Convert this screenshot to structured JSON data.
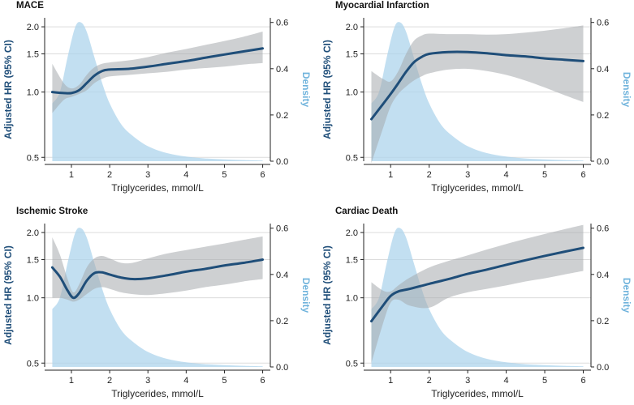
{
  "chart_data": [
    {
      "type": "line",
      "title": "MACE",
      "xlabel": "Triglycerides, mmol/L",
      "ylabel": "Adjusted HR (95% CI)",
      "y2label": "Density",
      "x_ticks": [
        1,
        2,
        3,
        4,
        5,
        6
      ],
      "y_ticks": [
        0.5,
        1.0,
        1.5,
        2.0
      ],
      "y_tick_labels": [
        "0.5",
        "1.0",
        "1.5",
        "2.0"
      ],
      "y2_ticks": [
        0.0,
        0.2,
        0.4,
        0.6
      ],
      "y2_tick_labels": [
        "0.0",
        "0.2",
        "0.4",
        "0.6"
      ],
      "xlim": [
        0.3,
        6.2
      ],
      "ylim": [
        0.48,
        2.2
      ],
      "y_scale": "log",
      "y2lim": [
        0,
        0.62
      ],
      "hr_curve": {
        "x": [
          0.5,
          0.8,
          1.0,
          1.2,
          1.4,
          1.6,
          1.8,
          2.0,
          2.5,
          3.0,
          3.5,
          4.0,
          4.5,
          5.0,
          5.5,
          6.0
        ],
        "y": [
          1.0,
          0.99,
          0.99,
          1.02,
          1.1,
          1.19,
          1.25,
          1.27,
          1.28,
          1.31,
          1.35,
          1.39,
          1.44,
          1.49,
          1.54,
          1.59
        ]
      },
      "ci_upper": {
        "x": [
          0.5,
          0.8,
          1.0,
          1.2,
          1.4,
          1.6,
          1.8,
          2.0,
          2.5,
          3.0,
          3.5,
          4.0,
          4.5,
          5.0,
          5.5,
          6.0
        ],
        "y": [
          1.35,
          1.1,
          1.04,
          1.08,
          1.2,
          1.3,
          1.35,
          1.37,
          1.4,
          1.45,
          1.52,
          1.58,
          1.65,
          1.72,
          1.8,
          1.9
        ]
      },
      "ci_lower": {
        "x": [
          0.5,
          0.8,
          1.0,
          1.2,
          1.4,
          1.6,
          1.8,
          2.0,
          2.5,
          3.0,
          3.5,
          4.0,
          4.5,
          5.0,
          5.5,
          6.0
        ],
        "y": [
          0.8,
          0.92,
          0.95,
          0.98,
          1.02,
          1.1,
          1.15,
          1.18,
          1.2,
          1.22,
          1.24,
          1.27,
          1.29,
          1.31,
          1.34,
          1.36
        ]
      },
      "density": {
        "x": [
          0.5,
          0.7,
          0.9,
          1.1,
          1.25,
          1.4,
          1.6,
          1.8,
          2.0,
          2.3,
          2.6,
          3.0,
          3.5,
          4.0,
          4.5,
          5.0,
          5.5,
          6.0
        ],
        "y": [
          0.25,
          0.3,
          0.45,
          0.58,
          0.6,
          0.56,
          0.45,
          0.34,
          0.25,
          0.16,
          0.11,
          0.065,
          0.035,
          0.02,
          0.012,
          0.008,
          0.005,
          0.003
        ]
      }
    },
    {
      "type": "line",
      "title": "Myocardial Infarction",
      "xlabel": "Triglycerides, mmol/L",
      "ylabel": "Adjusted HR (95% CI)",
      "y2label": "Density",
      "x_ticks": [
        1,
        2,
        3,
        4,
        5,
        6
      ],
      "y_ticks": [
        0.5,
        1.0,
        1.5,
        2.0
      ],
      "y_tick_labels": [
        "0.5",
        "1.0",
        "1.5",
        "2.0"
      ],
      "y2_ticks": [
        0.0,
        0.2,
        0.4,
        0.6
      ],
      "y2_tick_labels": [
        "0.0",
        "0.2",
        "0.4",
        "0.6"
      ],
      "xlim": [
        0.3,
        6.2
      ],
      "ylim": [
        0.48,
        2.2
      ],
      "y_scale": "log",
      "y2lim": [
        0,
        0.62
      ],
      "hr_curve": {
        "x": [
          0.5,
          0.8,
          1.0,
          1.2,
          1.4,
          1.6,
          1.8,
          2.0,
          2.5,
          3.0,
          3.5,
          4.0,
          4.5,
          5.0,
          5.5,
          6.0
        ],
        "y": [
          0.75,
          0.88,
          0.98,
          1.1,
          1.24,
          1.37,
          1.45,
          1.5,
          1.53,
          1.53,
          1.51,
          1.48,
          1.46,
          1.43,
          1.41,
          1.39
        ]
      },
      "ci_upper": {
        "x": [
          0.5,
          0.8,
          1.0,
          1.2,
          1.4,
          1.6,
          1.8,
          2.0,
          2.5,
          3.0,
          3.5,
          4.0,
          4.5,
          5.0,
          5.5,
          6.0
        ],
        "y": [
          1.25,
          1.15,
          1.12,
          1.25,
          1.5,
          1.72,
          1.82,
          1.86,
          1.85,
          1.85,
          1.84,
          1.85,
          1.88,
          1.92,
          1.97,
          2.03
        ]
      },
      "ci_lower": {
        "x": [
          0.5,
          0.8,
          1.0,
          1.2,
          1.4,
          1.6,
          1.8,
          2.0,
          2.5,
          3.0,
          3.5,
          4.0,
          4.5,
          5.0,
          5.5,
          6.0
        ],
        "y": [
          0.47,
          0.68,
          0.86,
          0.98,
          1.06,
          1.13,
          1.18,
          1.22,
          1.27,
          1.28,
          1.25,
          1.2,
          1.13,
          1.05,
          0.97,
          0.9
        ]
      },
      "density": {
        "x": [
          0.5,
          0.7,
          0.9,
          1.1,
          1.25,
          1.4,
          1.6,
          1.8,
          2.0,
          2.3,
          2.6,
          3.0,
          3.5,
          4.0,
          4.5,
          5.0,
          5.5,
          6.0
        ],
        "y": [
          0.25,
          0.3,
          0.45,
          0.58,
          0.6,
          0.56,
          0.45,
          0.34,
          0.25,
          0.16,
          0.11,
          0.065,
          0.035,
          0.02,
          0.012,
          0.008,
          0.005,
          0.003
        ]
      }
    },
    {
      "type": "line",
      "title": "Ischemic Stroke",
      "xlabel": "Triglycerides, mmol/L",
      "ylabel": "Adjusted HR (95% CI)",
      "y2label": "Density",
      "x_ticks": [
        1,
        2,
        3,
        4,
        5,
        6
      ],
      "y_ticks": [
        0.5,
        1.0,
        1.5,
        2.0
      ],
      "y_tick_labels": [
        "0.5",
        "1.0",
        "1.5",
        "2.0"
      ],
      "y2_ticks": [
        0.0,
        0.2,
        0.4,
        0.6
      ],
      "y2_tick_labels": [
        "0.0",
        "0.2",
        "0.4",
        "0.6"
      ],
      "xlim": [
        0.3,
        6.2
      ],
      "ylim": [
        0.48,
        2.2
      ],
      "y_scale": "log",
      "y2lim": [
        0,
        0.62
      ],
      "hr_curve": {
        "x": [
          0.5,
          0.7,
          0.9,
          1.05,
          1.2,
          1.4,
          1.6,
          1.8,
          2.0,
          2.3,
          2.6,
          3.0,
          3.5,
          4.0,
          4.5,
          5.0,
          5.5,
          6.0
        ],
        "y": [
          1.38,
          1.25,
          1.08,
          1.0,
          1.05,
          1.2,
          1.3,
          1.31,
          1.28,
          1.24,
          1.22,
          1.23,
          1.27,
          1.32,
          1.36,
          1.41,
          1.45,
          1.5
        ]
      },
      "ci_upper": {
        "x": [
          0.5,
          0.7,
          0.9,
          1.05,
          1.2,
          1.4,
          1.6,
          1.8,
          2.0,
          2.3,
          2.6,
          3.0,
          3.5,
          4.0,
          4.5,
          5.0,
          5.5,
          6.0
        ],
        "y": [
          1.9,
          1.58,
          1.22,
          1.06,
          1.15,
          1.38,
          1.52,
          1.56,
          1.52,
          1.45,
          1.45,
          1.52,
          1.6,
          1.66,
          1.72,
          1.78,
          1.85,
          1.92
        ]
      },
      "ci_lower": {
        "x": [
          0.5,
          0.7,
          0.9,
          1.05,
          1.2,
          1.4,
          1.6,
          1.8,
          2.0,
          2.3,
          2.6,
          3.0,
          3.5,
          4.0,
          4.5,
          5.0,
          5.5,
          6.0
        ],
        "y": [
          1.0,
          1.0,
          0.98,
          0.96,
          0.98,
          1.04,
          1.1,
          1.12,
          1.1,
          1.06,
          1.04,
          1.03,
          1.05,
          1.08,
          1.12,
          1.15,
          1.19,
          1.22
        ]
      },
      "density": {
        "x": [
          0.5,
          0.7,
          0.9,
          1.1,
          1.25,
          1.4,
          1.6,
          1.8,
          2.0,
          2.3,
          2.6,
          3.0,
          3.5,
          4.0,
          4.5,
          5.0,
          5.5,
          6.0
        ],
        "y": [
          0.25,
          0.3,
          0.45,
          0.58,
          0.6,
          0.56,
          0.45,
          0.34,
          0.25,
          0.16,
          0.11,
          0.065,
          0.035,
          0.02,
          0.012,
          0.008,
          0.005,
          0.003
        ]
      }
    },
    {
      "type": "line",
      "title": "Cardiac Death",
      "xlabel": "Triglycerides, mmol/L",
      "ylabel": "Adjusted HR (95% CI)",
      "y2label": "Density",
      "x_ticks": [
        1,
        2,
        3,
        4,
        5,
        6
      ],
      "y_ticks": [
        0.5,
        1.0,
        1.5,
        2.0
      ],
      "y_tick_labels": [
        "0.5",
        "1.0",
        "1.5",
        "2.0"
      ],
      "y2_ticks": [
        0.0,
        0.2,
        0.4,
        0.6
      ],
      "y2_tick_labels": [
        "0.0",
        "0.2",
        "0.4",
        "0.6"
      ],
      "xlim": [
        0.3,
        6.2
      ],
      "ylim": [
        0.48,
        2.2
      ],
      "y_scale": "log",
      "y2lim": [
        0,
        0.62
      ],
      "hr_curve": {
        "x": [
          0.5,
          0.8,
          1.0,
          1.2,
          1.5,
          2.0,
          2.5,
          3.0,
          3.5,
          4.0,
          4.5,
          5.0,
          5.5,
          6.0
        ],
        "y": [
          0.78,
          0.92,
          1.02,
          1.07,
          1.1,
          1.16,
          1.22,
          1.29,
          1.35,
          1.42,
          1.49,
          1.56,
          1.63,
          1.7
        ]
      },
      "ci_upper": {
        "x": [
          0.5,
          0.8,
          1.0,
          1.2,
          1.5,
          2.0,
          2.5,
          3.0,
          3.5,
          4.0,
          4.5,
          5.0,
          5.5,
          6.0
        ],
        "y": [
          1.18,
          1.08,
          1.07,
          1.14,
          1.24,
          1.38,
          1.48,
          1.57,
          1.67,
          1.77,
          1.87,
          1.97,
          2.07,
          2.17
        ]
      },
      "ci_lower": {
        "x": [
          0.5,
          0.8,
          1.0,
          1.2,
          1.5,
          2.0,
          2.5,
          3.0,
          3.5,
          4.0,
          4.5,
          5.0,
          5.5,
          6.0
        ],
        "y": [
          0.5,
          0.76,
          0.95,
          0.98,
          0.92,
          0.9,
          1.0,
          1.06,
          1.1,
          1.14,
          1.19,
          1.23,
          1.28,
          1.33
        ]
      },
      "density": {
        "x": [
          0.5,
          0.7,
          0.9,
          1.1,
          1.25,
          1.4,
          1.6,
          1.8,
          2.0,
          2.3,
          2.6,
          3.0,
          3.5,
          4.0,
          4.5,
          5.0,
          5.5,
          6.0
        ],
        "y": [
          0.25,
          0.3,
          0.45,
          0.58,
          0.6,
          0.56,
          0.45,
          0.34,
          0.25,
          0.16,
          0.11,
          0.065,
          0.035,
          0.02,
          0.012,
          0.008,
          0.005,
          0.003
        ]
      }
    }
  ],
  "colors": {
    "curve": "#1f4e79",
    "ci_band": "#a6a9ad",
    "density": "#aed4ec",
    "density_label": "#6fb3dc",
    "grid": "#dcdcdc",
    "axis": "#222222"
  }
}
